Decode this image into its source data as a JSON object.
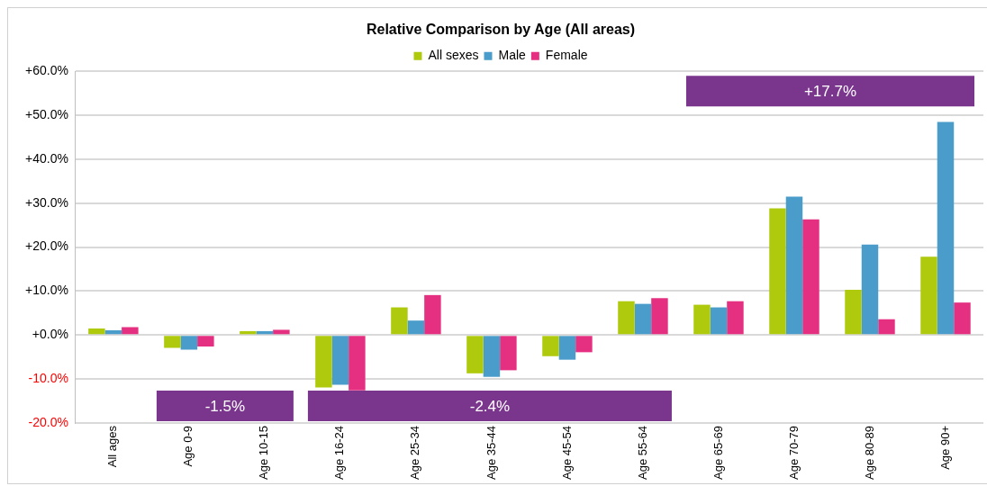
{
  "chart_data": {
    "type": "bar",
    "title": "Relative Comparison by Age (All areas)",
    "categories": [
      "All ages",
      "Age 0-9",
      "Age 10-15",
      "Age 16-24",
      "Age 25-34",
      "Age 35-44",
      "Age 45-54",
      "Age 55-64",
      "Age 65-69",
      "Age 70-79",
      "Age 80-89",
      "Age 90+"
    ],
    "series": [
      {
        "name": "All sexes",
        "color": "#afc90c",
        "values": [
          1.5,
          -2.9,
          0.9,
          -11.9,
          6.3,
          -8.7,
          -4.8,
          7.7,
          6.9,
          28.8,
          10.3,
          17.8
        ]
      },
      {
        "name": "Male",
        "color": "#4a9cca",
        "values": [
          1.1,
          -3.3,
          0.9,
          -11.3,
          3.3,
          -9.5,
          -5.6,
          7.1,
          6.3,
          31.5,
          20.6,
          48.5
        ]
      },
      {
        "name": "Female",
        "color": "#e52f80",
        "values": [
          1.8,
          -2.6,
          1.2,
          -12.6,
          9.1,
          -8.0,
          -3.9,
          8.4,
          7.7,
          26.3,
          3.6,
          7.4
        ]
      }
    ],
    "ylim": [
      -20,
      60
    ],
    "yticks": [
      {
        "value": 60,
        "label": "+60.0%"
      },
      {
        "value": 50,
        "label": "+50.0%"
      },
      {
        "value": 40,
        "label": "+40.0%"
      },
      {
        "value": 30,
        "label": "+30.0%"
      },
      {
        "value": 20,
        "label": "+20.0%"
      },
      {
        "value": 10,
        "label": "+10.0%"
      },
      {
        "value": 0,
        "label": "+0.0%"
      },
      {
        "value": -10,
        "label": "-10.0%"
      },
      {
        "value": -20,
        "label": "-20.0%"
      }
    ],
    "bands": [
      {
        "axis": "x",
        "from": "Age 0-9",
        "to": "Age 10-15",
        "label": "-1.5%",
        "color": "#7a368c"
      },
      {
        "axis": "x",
        "from": "Age 16-24",
        "to": "Age 55-64",
        "label": "-2.4%",
        "color": "#7a368c"
      },
      {
        "axis": "x",
        "from": "Age 65-69",
        "to": "Age 90+",
        "label": "+17.7%",
        "color": "#7a368c"
      }
    ],
    "grid": "y",
    "legend": "top"
  }
}
